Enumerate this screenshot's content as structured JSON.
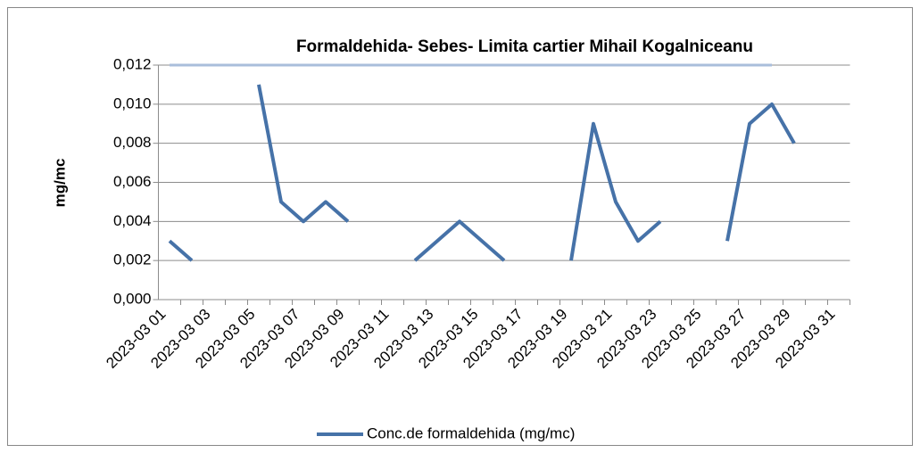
{
  "chart_data": {
    "type": "line",
    "title": "Formaldehida- Sebes- Limita cartier Mihail  Kogalniceanu",
    "y_label": "mg/mc",
    "categories": [
      "2023-03 01",
      null,
      "2023-03 03",
      null,
      "2023-03 05",
      null,
      "2023-03 07",
      null,
      "2023-03 09",
      null,
      "2023-03 11",
      null,
      "2023-03 13",
      null,
      "2023-03 15",
      null,
      "2023-03 17",
      null,
      "2023-03 19",
      null,
      "2023-03 21",
      null,
      "2023-03 23",
      null,
      "2023-03 25",
      null,
      "2023-03 27",
      null,
      "2023-03 29",
      null,
      "2023-03 31"
    ],
    "series": [
      {
        "name": "Conc.de formaldehida (mg/mc)",
        "color": "#4672a8",
        "values": [
          0.003,
          0.002,
          null,
          null,
          0.011,
          0.005,
          0.004,
          0.005,
          0.004,
          null,
          null,
          0.002,
          0.003,
          0.004,
          0.003,
          0.002,
          null,
          null,
          0.002,
          0.009,
          0.005,
          0.003,
          0.004,
          null,
          null,
          0.003,
          0.009,
          0.01,
          0.008,
          null,
          null
        ]
      },
      {
        "color": "#a9bedb",
        "values": [
          0.012,
          0.012,
          0.012,
          0.012,
          0.012,
          0.012,
          0.012,
          0.012,
          0.012,
          0.012,
          0.012,
          0.012,
          0.012,
          0.012,
          0.012,
          0.012,
          0.012,
          0.012,
          0.012,
          0.012,
          0.012,
          0.012,
          0.012,
          0.012,
          0.012,
          0.012,
          0.012,
          0.012,
          null,
          null,
          null
        ]
      }
    ],
    "ylim": [
      0,
      0.012
    ],
    "yticks": [
      {
        "value": 0,
        "label": "0,000"
      },
      {
        "value": 0.002,
        "label": "0,002"
      },
      {
        "value": 0.004,
        "label": "0,004"
      },
      {
        "value": 0.006,
        "label": "0,006"
      },
      {
        "value": 0.008,
        "label": "0,008"
      },
      {
        "value": 0.01,
        "label": "0,010"
      },
      {
        "value": 0.012,
        "label": "0,012"
      }
    ],
    "grid": true,
    "legend": "bottom"
  }
}
